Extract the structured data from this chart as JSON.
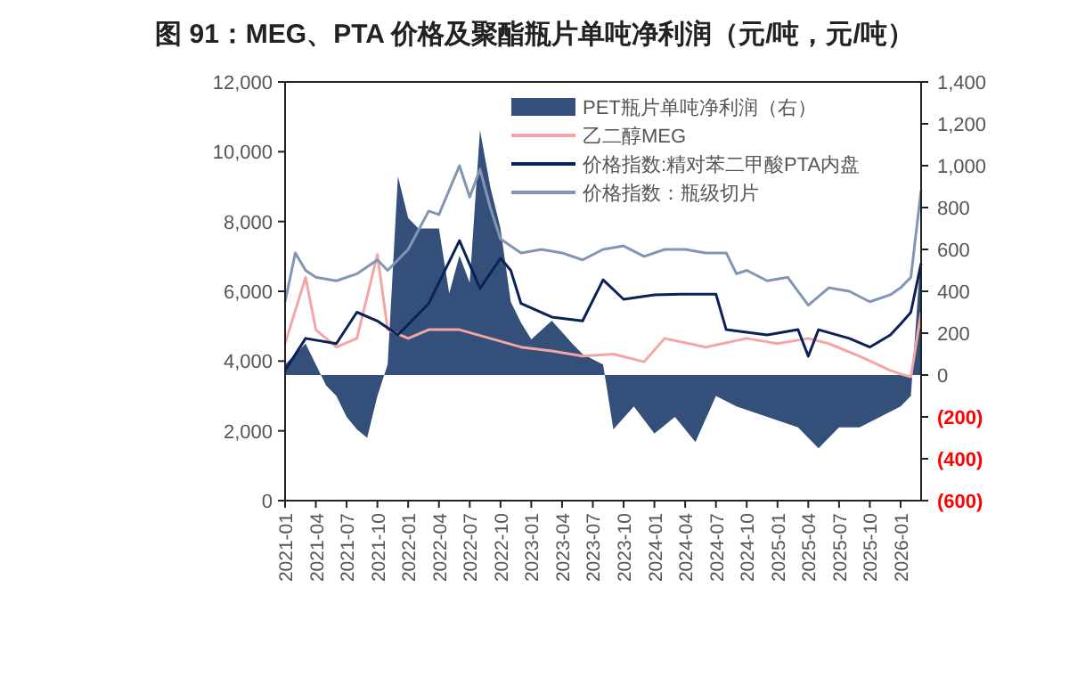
{
  "chart_data": {
    "type": "line",
    "title": "图 91：MEG、PTA 价格及聚酯瓶片单吨净利润（元/吨，元/吨）",
    "xlim": [
      "2021-01",
      "2026-03"
    ],
    "xticks": [
      "2021-01",
      "2021-04",
      "2021-07",
      "2021-10",
      "2022-01",
      "2022-04",
      "2022-07",
      "2022-10",
      "2023-01",
      "2023-04",
      "2023-07",
      "2023-10",
      "2024-01",
      "2024-04",
      "2024-07",
      "2024-10",
      "2025-01",
      "2025-04",
      "2025-07",
      "2025-10",
      "2026-01"
    ],
    "ylim": [
      0,
      12000
    ],
    "yticks": [
      {
        "value": 0,
        "label": "0"
      },
      {
        "value": 2000,
        "label": "2,000"
      },
      {
        "value": 4000,
        "label": "4,000"
      },
      {
        "value": 6000,
        "label": "6,000"
      },
      {
        "value": 8000,
        "label": "8,000"
      },
      {
        "value": 10000,
        "label": "10,000"
      },
      {
        "value": 12000,
        "label": "12,000"
      }
    ],
    "y2lim": [
      -600,
      1400
    ],
    "y2ticks": [
      {
        "value": -600,
        "label": "(600)"
      },
      {
        "value": -400,
        "label": "(400)"
      },
      {
        "value": -200,
        "label": "(200)"
      },
      {
        "value": 0,
        "label": "0"
      },
      {
        "value": 200,
        "label": "200"
      },
      {
        "value": 400,
        "label": "400"
      },
      {
        "value": 600,
        "label": "600"
      },
      {
        "value": 800,
        "label": "800"
      },
      {
        "value": 1000,
        "label": "1,000"
      },
      {
        "value": 1200,
        "label": "1,200"
      },
      {
        "value": 1400,
        "label": "1,400"
      }
    ],
    "legend": "top",
    "grid": false,
    "series": [
      {
        "name": "PET瓶片单吨净利润（右）",
        "type": "area",
        "axis": "y2",
        "color": "#34507a",
        "x": [
          "2021-01",
          "2021-02",
          "2021-03",
          "2021-04",
          "2021-05",
          "2021-06",
          "2021-07",
          "2021-08",
          "2021-09",
          "2021-10",
          "2021-11",
          "2021-12",
          "2022-01",
          "2022-02",
          "2022-03",
          "2022-04",
          "2022-05",
          "2022-06",
          "2022-07",
          "2022-08",
          "2022-09",
          "2022-10",
          "2022-11",
          "2022-12",
          "2023-01",
          "2023-03",
          "2023-05",
          "2023-06",
          "2023-08",
          "2023-09",
          "2023-11",
          "2024-01",
          "2024-03",
          "2024-05",
          "2024-07",
          "2024-09",
          "2024-12",
          "2025-03",
          "2025-05",
          "2025-07",
          "2025-09",
          "2025-11",
          "2026-01",
          "2026-02",
          "2026-03"
        ],
        "values": [
          50,
          100,
          150,
          50,
          -50,
          -100,
          -200,
          -260,
          -300,
          -100,
          50,
          950,
          750,
          700,
          700,
          700,
          390,
          570,
          440,
          1170,
          900,
          700,
          350,
          250,
          170,
          260,
          150,
          100,
          50,
          -260,
          -150,
          -280,
          -200,
          -320,
          -100,
          -150,
          -200,
          -250,
          -350,
          -250,
          -250,
          -200,
          -150,
          -100,
          600
        ]
      },
      {
        "name": "乙二醇MEG",
        "color": "#f4a6a6",
        "x": [
          "2021-01",
          "2021-03",
          "2021-04",
          "2021-06",
          "2021-08",
          "2021-10",
          "2021-11",
          "2022-01",
          "2022-03",
          "2022-06",
          "2022-09",
          "2022-12",
          "2023-03",
          "2023-06",
          "2023-09",
          "2023-12",
          "2024-02",
          "2024-06",
          "2024-10",
          "2025-01",
          "2025-04",
          "2025-06",
          "2025-09",
          "2025-12",
          "2026-01",
          "2026-02",
          "2026-03"
        ],
        "values": [
          4500,
          6400,
          4900,
          4400,
          4650,
          7050,
          4900,
          4650,
          4900,
          4900,
          4650,
          4400,
          4290,
          4140,
          4200,
          3980,
          4650,
          4400,
          4650,
          4500,
          4650,
          4500,
          4140,
          3730,
          3630,
          3550,
          5400
        ]
      },
      {
        "name": "价格指数:精对苯二甲酸PTA内盘",
        "color": "#0b2258",
        "x": [
          "2021-01",
          "2021-03",
          "2021-06",
          "2021-08",
          "2021-10",
          "2021-12",
          "2022-03",
          "2022-06",
          "2022-08",
          "2022-10",
          "2022-11",
          "2022-12",
          "2023-03",
          "2023-06",
          "2023-08",
          "2023-10",
          "2024-01",
          "2024-04",
          "2024-07",
          "2024-08",
          "2024-12",
          "2025-03",
          "2025-04",
          "2025-05",
          "2025-08",
          "2025-10",
          "2025-12",
          "2026-01",
          "2026-02",
          "2026-03"
        ],
        "values": [
          3730,
          4650,
          4500,
          5400,
          5150,
          4750,
          5650,
          7450,
          6080,
          6950,
          6600,
          5650,
          5260,
          5150,
          6330,
          5770,
          5900,
          5920,
          5920,
          4900,
          4750,
          4900,
          4140,
          4900,
          4650,
          4400,
          4750,
          5060,
          5400,
          6800
        ]
      },
      {
        "name": "价格指数：瓶级切片",
        "color": "#8296b4",
        "x": [
          "2021-01",
          "2021-02",
          "2021-03",
          "2021-04",
          "2021-06",
          "2021-08",
          "2021-10",
          "2021-11",
          "2022-01",
          "2022-03",
          "2022-04",
          "2022-06",
          "2022-07",
          "2022-08",
          "2022-09",
          "2022-10",
          "2022-12",
          "2023-02",
          "2023-04",
          "2023-06",
          "2023-08",
          "2023-10",
          "2023-12",
          "2024-02",
          "2024-04",
          "2024-06",
          "2024-08",
          "2024-09",
          "2024-10",
          "2024-12",
          "2025-02",
          "2025-04",
          "2025-06",
          "2025-08",
          "2025-10",
          "2025-12",
          "2026-01",
          "2026-02",
          "2026-03"
        ],
        "values": [
          5700,
          7100,
          6600,
          6400,
          6300,
          6500,
          6900,
          6600,
          7200,
          8300,
          8200,
          9600,
          8700,
          9500,
          8400,
          7500,
          7100,
          7200,
          7100,
          6900,
          7200,
          7300,
          7000,
          7200,
          7200,
          7100,
          7100,
          6500,
          6600,
          6300,
          6400,
          5600,
          6100,
          6000,
          5700,
          5900,
          6100,
          6400,
          8900
        ]
      }
    ]
  }
}
